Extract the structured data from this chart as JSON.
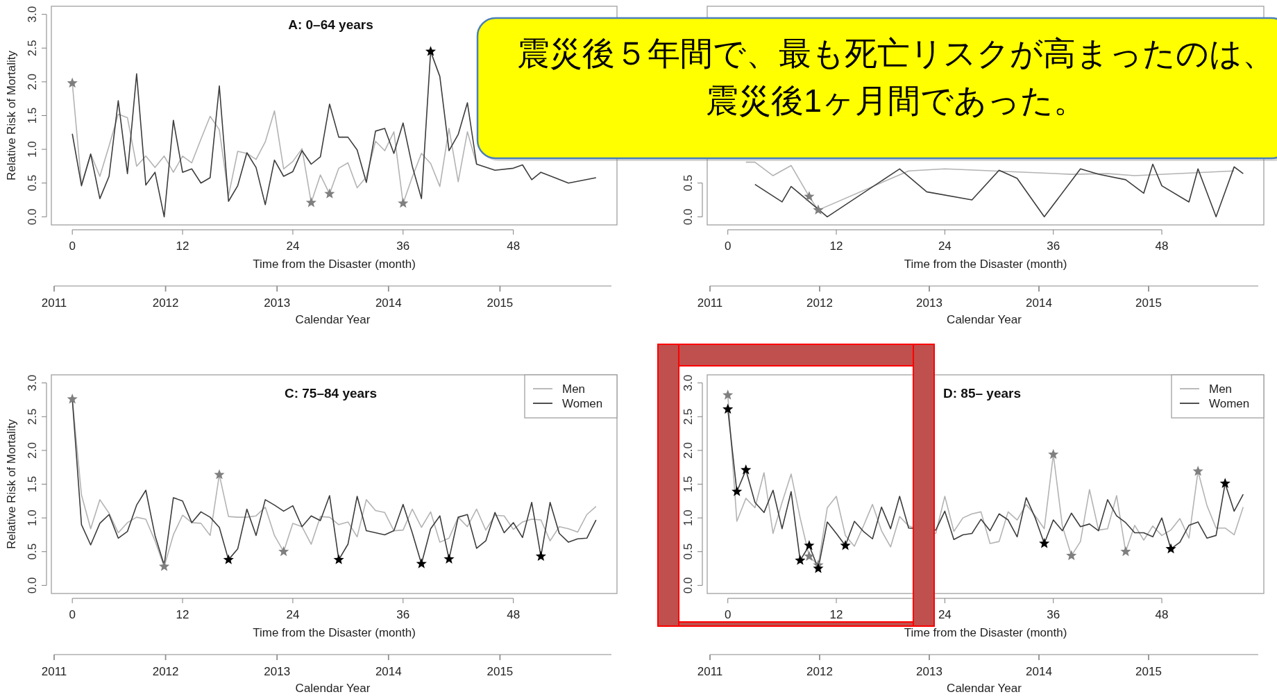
{
  "chart_data": [
    {
      "type": "line",
      "title": "A: 0–64 years",
      "xlabel": "Time from the Disaster (month)",
      "ylabel": "Relative Risk of Mortality",
      "x2label": "Calendar Year",
      "annotations": [
        "震災後５年間で、最も死亡リスクが高まったのは、",
        "震災後1ヶ月間であった。"
      ],
      "xlim": [
        -2.28,
        59.28
      ],
      "ylim": [
        -0.12,
        3.12
      ],
      "xticks": [
        0,
        12,
        24,
        36,
        48
      ],
      "yticks": [
        {
          "value": 0,
          "label": "0.0"
        },
        {
          "value": 0.5,
          "label": "0.5"
        },
        {
          "value": 1,
          "label": "1.0"
        },
        {
          "value": 1.5,
          "label": "1.5"
        },
        {
          "value": 2,
          "label": "2.0"
        },
        {
          "value": 2.5,
          "label": "2.5"
        },
        {
          "value": 3,
          "label": "3.0"
        }
      ],
      "x2lim": [
        2011,
        2016
      ],
      "x2ticks": [
        2011,
        2012,
        2013,
        2014,
        2015
      ],
      "series": [
        {
          "color": "#b3b3b3",
          "x": [
            0,
            1,
            2,
            3,
            4,
            5,
            6,
            7,
            8,
            9,
            10,
            11,
            12,
            13,
            14,
            15,
            16,
            17,
            18,
            19,
            20,
            21,
            22,
            23,
            24,
            25,
            26,
            27,
            28,
            29,
            30,
            31,
            32,
            33,
            34,
            35,
            36,
            37,
            38,
            39,
            40,
            41,
            42,
            43,
            44
          ],
          "values": [
            1.98,
            0.48,
            0.93,
            0.6,
            1.05,
            1.52,
            1.47,
            0.75,
            0.9,
            0.73,
            0.9,
            0.66,
            0.9,
            0.8,
            1.15,
            1.49,
            1.29,
            0.31,
            0.97,
            0.94,
            0.85,
            1.11,
            1.57,
            0.71,
            0.82,
            1.01,
            0.21,
            0.62,
            0.34,
            0.72,
            0.8,
            0.43,
            0.59,
            1.12,
            0.98,
            1.26,
            0.2,
            0.59,
            0.94,
            0.79,
            0.45,
            1.31,
            0.52,
            1.26,
            0.78
          ]
        },
        {
          "color": "#3c3c3c",
          "x": [
            0,
            1,
            2,
            3,
            4,
            5,
            6,
            7,
            8,
            9,
            10,
            11,
            12,
            13,
            14,
            15,
            16,
            17,
            18,
            19,
            20,
            21,
            22,
            23,
            24,
            25,
            26,
            27,
            28,
            29,
            30,
            31,
            32,
            33,
            34,
            35,
            36,
            37,
            38,
            39,
            40,
            41,
            42,
            43,
            44,
            46,
            48,
            49,
            50,
            51,
            54,
            57
          ],
          "values": [
            1.23,
            0.46,
            0.93,
            0.27,
            0.6,
            1.72,
            0.64,
            2.12,
            0.47,
            0.66,
            0.0,
            1.43,
            0.66,
            0.71,
            0.5,
            0.58,
            1.94,
            0.23,
            0.46,
            0.95,
            0.73,
            0.18,
            0.84,
            0.6,
            0.67,
            0.98,
            0.78,
            0.89,
            1.67,
            1.18,
            1.18,
            0.99,
            0.51,
            1.27,
            1.31,
            0.94,
            1.39,
            0.75,
            0.27,
            2.45,
            2.08,
            0.98,
            1.22,
            1.69,
            0.78,
            0.69,
            0.72,
            0.77,
            0.55,
            0.66,
            0.5,
            0.58
          ]
        },
        {
          "type": "scatter",
          "marker": "star",
          "color": "#7f7f7f",
          "x": [
            0,
            26,
            28,
            36
          ],
          "values": [
            1.98,
            0.21,
            0.34,
            0.2
          ]
        },
        {
          "type": "scatter",
          "marker": "star",
          "color": "#000000",
          "x": [
            39
          ],
          "values": [
            2.45
          ]
        }
      ]
    },
    {
      "type": "line",
      "xlabel": "Time from the Disaster (month)",
      "x2label": "Calendar Year",
      "xlim": [
        -2.28,
        59.28
      ],
      "ylim": [
        -0.12,
        3.12
      ],
      "xticks": [
        0,
        12,
        24,
        36,
        48
      ],
      "yticks": [
        {
          "value": 0,
          "label": "0.0"
        },
        {
          "value": 0.5,
          "label": "0.5"
        }
      ],
      "x2lim": [
        2011,
        2016
      ],
      "x2ticks": [
        2011,
        2012,
        2013,
        2014,
        2015
      ],
      "series": [
        {
          "color": "#b3b3b3",
          "x": [
            2,
            3,
            5,
            7,
            9,
            10,
            20,
            24,
            38,
            42,
            45,
            56
          ],
          "values": [
            0.81,
            0.81,
            0.61,
            0.76,
            0.3,
            0.1,
            0.68,
            0.71,
            0.63,
            0.64,
            0.61,
            0.68
          ]
        },
        {
          "color": "#3c3c3c",
          "x": [
            3,
            6,
            7,
            11,
            19,
            22,
            27,
            30,
            32,
            35,
            39,
            41,
            44,
            46,
            47,
            48,
            51,
            52,
            54,
            56,
            57
          ],
          "values": [
            0.48,
            0.22,
            0.45,
            0.0,
            0.71,
            0.37,
            0.25,
            0.69,
            0.57,
            0.0,
            0.71,
            0.63,
            0.55,
            0.35,
            0.78,
            0.46,
            0.22,
            0.71,
            0.0,
            0.74,
            0.64
          ]
        },
        {
          "type": "scatter",
          "marker": "star",
          "color": "#7f7f7f",
          "x": [
            9,
            10
          ],
          "values": [
            0.3,
            0.1
          ]
        }
      ]
    },
    {
      "type": "line",
      "title": "C: 75–84 years",
      "xlabel": "Time from the Disaster (month)",
      "ylabel": "Relative Risk of Mortality",
      "x2label": "Calendar Year",
      "legend": "top right",
      "xlim": [
        -2.28,
        59.28
      ],
      "ylim": [
        -0.12,
        3.12
      ],
      "xticks": [
        0,
        12,
        24,
        36,
        48
      ],
      "yticks": [
        {
          "value": 0,
          "label": "0.0"
        },
        {
          "value": 0.5,
          "label": "0.5"
        },
        {
          "value": 1,
          "label": "1.0"
        },
        {
          "value": 1.5,
          "label": "1.5"
        },
        {
          "value": 2,
          "label": "2.0"
        },
        {
          "value": 2.5,
          "label": "2.5"
        },
        {
          "value": 3,
          "label": "3.0"
        }
      ],
      "x2lim": [
        2011,
        2016
      ],
      "x2ticks": [
        2011,
        2012,
        2013,
        2014,
        2015
      ],
      "x": [
        0,
        1,
        2,
        3,
        4,
        5,
        6,
        7,
        8,
        9,
        10,
        11,
        12,
        13,
        14,
        15,
        16,
        17,
        18,
        19,
        20,
        21,
        22,
        23,
        24,
        25,
        26,
        27,
        28,
        29,
        30,
        31,
        32,
        33,
        34,
        35,
        36,
        37,
        38,
        39,
        40,
        41,
        42,
        43,
        44,
        45,
        46,
        47,
        48,
        49,
        50,
        51,
        52,
        53,
        54,
        55,
        56,
        57
      ],
      "series": [
        {
          "name": "Men",
          "color": "#b3b3b3",
          "values": [
            2.76,
            1.34,
            0.84,
            1.27,
            1.07,
            0.78,
            0.93,
            1.01,
            0.98,
            0.66,
            0.28,
            0.75,
            1.04,
            0.93,
            0.92,
            0.74,
            1.64,
            1.02,
            1.01,
            1.01,
            1.03,
            1.16,
            0.74,
            0.5,
            0.92,
            0.87,
            0.61,
            1.02,
            1.01,
            0.9,
            0.94,
            0.72,
            1.27,
            1.11,
            1.08,
            0.81,
            0.82,
            1.13,
            0.86,
            1.09,
            0.64,
            0.7,
            1.01,
            0.87,
            1.13,
            0.82,
            1.04,
            1.03,
            0.83,
            0.94,
            0.98,
            0.97,
            0.66,
            0.87,
            0.84,
            0.79,
            1.05,
            1.17
          ]
        },
        {
          "name": "Women",
          "color": "#3c3c3c",
          "values": [
            2.76,
            0.9,
            0.6,
            0.92,
            1.05,
            0.7,
            0.8,
            1.19,
            1.41,
            0.74,
            0.3,
            1.3,
            1.25,
            0.93,
            1.09,
            1.01,
            0.86,
            0.38,
            0.54,
            1.13,
            0.74,
            1.27,
            1.19,
            1.1,
            1.18,
            0.87,
            1.03,
            0.96,
            1.33,
            0.38,
            0.61,
            1.32,
            0.81,
            0.78,
            0.75,
            0.81,
            1.2,
            0.78,
            0.32,
            0.84,
            1.03,
            0.39,
            1.01,
            1.05,
            0.55,
            0.66,
            1.08,
            0.78,
            0.93,
            0.71,
            1.23,
            0.43,
            1.23,
            0.77,
            0.64,
            0.69,
            0.7,
            0.97
          ]
        },
        {
          "type": "scatter",
          "marker": "star",
          "color": "#7f7f7f",
          "x": [
            0,
            10,
            16,
            23
          ],
          "values": [
            2.76,
            0.28,
            1.64,
            0.5
          ]
        },
        {
          "type": "scatter",
          "marker": "star",
          "color": "#000000",
          "x": [
            17,
            29,
            38,
            41,
            51
          ],
          "values": [
            0.38,
            0.38,
            0.32,
            0.39,
            0.43
          ]
        }
      ]
    },
    {
      "type": "line",
      "title": "D: 85– years",
      "xlabel": "Time from the Disaster (month)",
      "x2label": "Calendar Year",
      "legend": "top right",
      "xlim": [
        -2.28,
        59.28
      ],
      "ylim": [
        -0.12,
        3.12
      ],
      "xticks": [
        0,
        12,
        24,
        36,
        48
      ],
      "yticks": [
        {
          "value": 0,
          "label": "0.0"
        },
        {
          "value": 0.5,
          "label": "0.5"
        },
        {
          "value": 1,
          "label": "1.0"
        },
        {
          "value": 1.5,
          "label": "1.5"
        },
        {
          "value": 2,
          "label": "2.0"
        },
        {
          "value": 2.5,
          "label": "2.5"
        },
        {
          "value": 3,
          "label": "3.0"
        }
      ],
      "x2lim": [
        2011,
        2016
      ],
      "x2ticks": [
        2011,
        2012,
        2013,
        2014,
        2015
      ],
      "series": [
        {
          "name": "Men",
          "color": "#b3b3b3",
          "x": [
            0,
            1,
            2,
            3,
            4,
            5,
            6,
            7,
            8,
            9,
            10,
            11,
            12,
            13,
            14,
            15,
            16,
            17,
            18,
            19,
            20,
            23,
            24,
            25,
            26,
            27,
            28,
            29,
            30,
            31,
            32,
            33,
            34,
            35,
            36,
            37,
            38,
            39,
            40,
            41,
            42,
            43,
            44,
            45,
            46,
            47,
            48,
            49,
            50,
            51,
            52,
            53,
            54,
            55,
            56,
            57
          ],
          "values": [
            2.82,
            0.95,
            1.29,
            1.15,
            1.67,
            0.77,
            1.23,
            1.65,
            1.0,
            0.43,
            0.3,
            1.15,
            1.32,
            0.74,
            0.58,
            0.88,
            1.2,
            0.81,
            0.57,
            1.02,
            0.88,
            0.77,
            1.32,
            0.8,
            1.0,
            1.06,
            1.09,
            0.62,
            0.65,
            1.09,
            0.97,
            1.2,
            1.03,
            0.84,
            1.94,
            0.88,
            0.44,
            0.65,
            1.42,
            0.82,
            0.84,
            1.33,
            0.5,
            0.89,
            0.67,
            0.88,
            0.74,
            0.82,
            0.99,
            0.7,
            1.69,
            1.18,
            0.85,
            0.85,
            0.75,
            1.16
          ]
        },
        {
          "name": "Women",
          "color": "#3c3c3c",
          "x": [
            0,
            1,
            2,
            3,
            4,
            5,
            6,
            7,
            8,
            9,
            10,
            11,
            12,
            13,
            14,
            15,
            16,
            17,
            18,
            19,
            20,
            23,
            24,
            25,
            26,
            27,
            28,
            29,
            30,
            31,
            32,
            33,
            34,
            35,
            36,
            37,
            38,
            39,
            40,
            41,
            42,
            43,
            44,
            45,
            46,
            47,
            48,
            49,
            50,
            51,
            52,
            53,
            54,
            55,
            56,
            57
          ],
          "values": [
            2.61,
            1.39,
            1.71,
            1.23,
            1.08,
            1.41,
            0.84,
            1.39,
            0.37,
            0.59,
            0.25,
            0.94,
            0.77,
            0.59,
            0.95,
            0.8,
            0.69,
            1.16,
            0.84,
            1.32,
            0.85,
            0.82,
            1.1,
            0.68,
            0.75,
            0.77,
            0.98,
            0.81,
            1.06,
            0.97,
            0.72,
            1.3,
            1.0,
            0.62,
            0.97,
            0.81,
            1.07,
            0.87,
            0.91,
            0.81,
            1.27,
            1.03,
            0.93,
            0.78,
            0.78,
            0.72,
            1.0,
            0.54,
            0.64,
            0.89,
            0.94,
            0.7,
            0.74,
            1.51,
            1.1,
            1.35
          ]
        },
        {
          "type": "scatter",
          "marker": "star",
          "color": "#7f7f7f",
          "x": [
            0,
            9,
            10,
            36,
            38,
            44,
            52
          ],
          "values": [
            2.82,
            0.43,
            0.3,
            1.94,
            0.44,
            0.5,
            1.69
          ]
        },
        {
          "type": "scatter",
          "marker": "star",
          "color": "#000000",
          "x": [
            0,
            1,
            2,
            8,
            9,
            10,
            13,
            35,
            49,
            55
          ],
          "values": [
            2.61,
            1.39,
            1.71,
            0.37,
            0.59,
            0.25,
            0.59,
            0.62,
            0.54,
            1.51
          ]
        }
      ]
    }
  ]
}
